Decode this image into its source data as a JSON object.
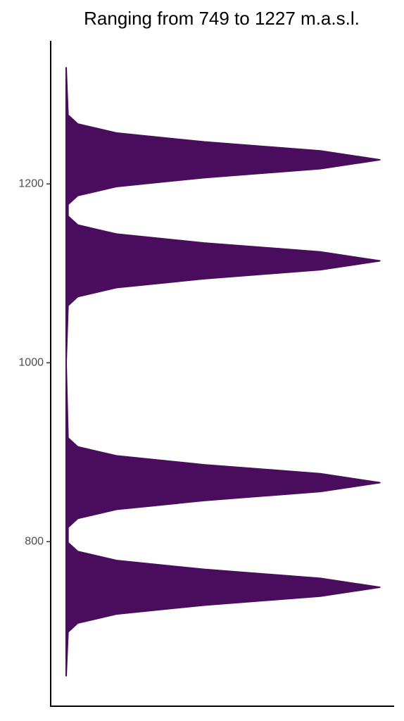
{
  "chart_data": {
    "type": "density",
    "orientation": "vertical",
    "title": "Ranging from 749 to 1227 m.a.s.l.",
    "color": "#4a0c5c",
    "x": [
      650,
      699,
      709,
      719,
      729,
      739,
      749,
      759,
      769,
      779,
      789,
      799,
      816,
      826,
      836,
      846,
      856,
      866,
      876,
      886,
      896,
      906,
      916,
      1000,
      1064,
      1074,
      1084,
      1094,
      1104,
      1114,
      1124,
      1134,
      1144,
      1154,
      1164,
      1177,
      1187,
      1197,
      1207,
      1217,
      1227,
      1237,
      1247,
      1257,
      1267,
      1277,
      1330
    ],
    "values": [
      0,
      0.006,
      0.037,
      0.16,
      0.44,
      0.81,
      1,
      0.81,
      0.44,
      0.16,
      0.037,
      0.006,
      0.006,
      0.037,
      0.16,
      0.44,
      0.81,
      1,
      0.81,
      0.44,
      0.16,
      0.037,
      0.006,
      0,
      0.006,
      0.037,
      0.16,
      0.44,
      0.81,
      1,
      0.81,
      0.44,
      0.16,
      0.037,
      0.006,
      0.006,
      0.037,
      0.16,
      0.44,
      0.81,
      1,
      0.81,
      0.44,
      0.16,
      0.037,
      0.006,
      0
    ],
    "xlim": [
      616,
      1360
    ],
    "xticks": [
      800,
      1000,
      1200
    ],
    "ylim": [
      0,
      1.05
    ]
  }
}
